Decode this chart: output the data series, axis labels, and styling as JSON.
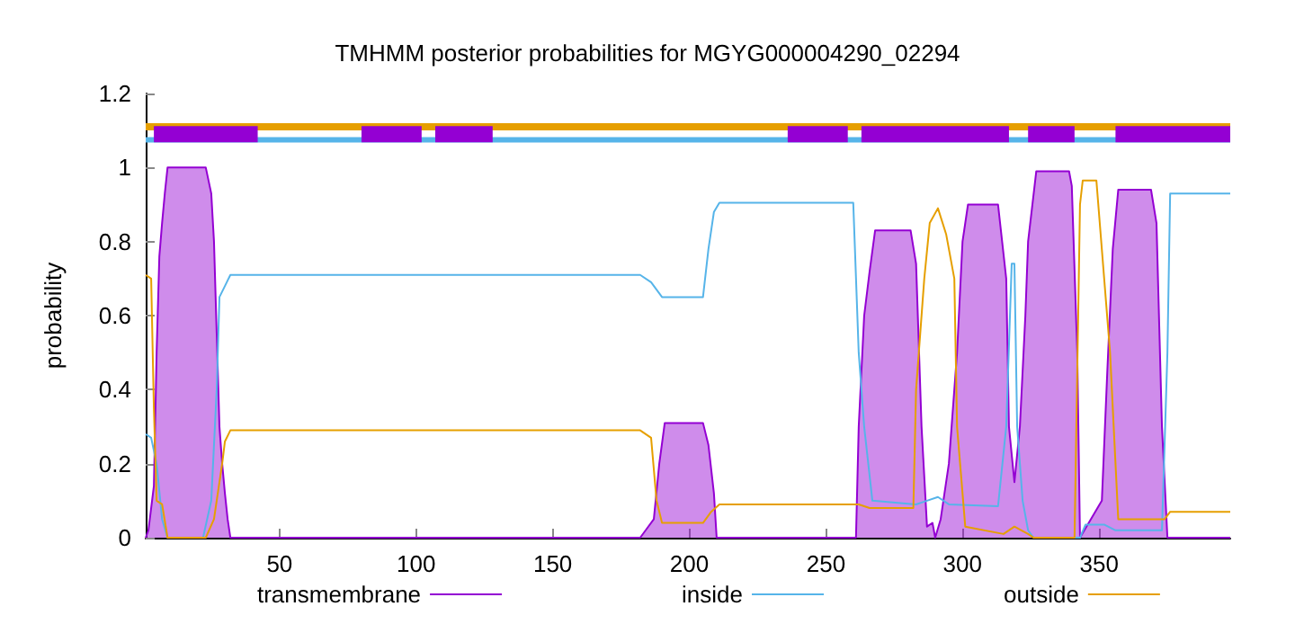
{
  "chart_data": {
    "type": "line",
    "title": "TMHMM posterior probabilities for MGYG000004290_02294",
    "ylabel": "probability",
    "xlim": [
      1,
      398
    ],
    "ylim": [
      0,
      1.2
    ],
    "xticks": [
      50,
      100,
      150,
      200,
      250,
      300,
      350
    ],
    "yticks": [
      0,
      0.2,
      0.4,
      0.6,
      0.8,
      1,
      1.2
    ],
    "legend": "bottom",
    "marker": "none",
    "series": [
      {
        "name": "transmembrane",
        "type": "area",
        "color": "#9400d3",
        "x": [
          1,
          2,
          4,
          5,
          6,
          7,
          8,
          9,
          23,
          25,
          26,
          27,
          28,
          29,
          30,
          31,
          32,
          182,
          184,
          187,
          189,
          191,
          205,
          207,
          209,
          210,
          261,
          262,
          264,
          266,
          268,
          281,
          283,
          285,
          287,
          289,
          290,
          292,
          295,
          298,
          300,
          302,
          313,
          316,
          317,
          319,
          321,
          323,
          324,
          327,
          339,
          340,
          342,
          343,
          351,
          353,
          355,
          357,
          369,
          371,
          373,
          375,
          398
        ],
        "values": [
          0,
          0.02,
          0.14,
          0.5,
          0.76,
          0.85,
          0.93,
          1,
          1,
          0.93,
          0.8,
          0.55,
          0.3,
          0.2,
          0.12,
          0.05,
          0,
          0,
          0.02,
          0.05,
          0.2,
          0.31,
          0.31,
          0.25,
          0.12,
          0,
          0,
          0.3,
          0.6,
          0.72,
          0.83,
          0.83,
          0.74,
          0.3,
          0.03,
          0.04,
          0,
          0.05,
          0.2,
          0.5,
          0.8,
          0.9,
          0.9,
          0.7,
          0.3,
          0.15,
          0.3,
          0.6,
          0.8,
          0.99,
          0.99,
          0.95,
          0.5,
          0,
          0.1,
          0.45,
          0.78,
          0.94,
          0.94,
          0.85,
          0.3,
          0,
          0
        ]
      },
      {
        "name": "inside",
        "color": "#56b4e9",
        "x": [
          1,
          3,
          5,
          7,
          9,
          22,
          25,
          27,
          28,
          30,
          32,
          182,
          186,
          190,
          205,
          207,
          209,
          211,
          260,
          262,
          264,
          267,
          283,
          287,
          291,
          295,
          313,
          316,
          318,
          319,
          320,
          322,
          324,
          326,
          343,
          345,
          352,
          356,
          373,
          375,
          376,
          398
        ],
        "values": [
          0.28,
          0.27,
          0.2,
          0.05,
          0,
          0,
          0.1,
          0.4,
          0.65,
          0.68,
          0.71,
          0.71,
          0.69,
          0.65,
          0.65,
          0.78,
          0.88,
          0.905,
          0.905,
          0.5,
          0.3,
          0.1,
          0.09,
          0.1,
          0.11,
          0.09,
          0.085,
          0.3,
          0.74,
          0.74,
          0.3,
          0.1,
          0.02,
          0,
          0,
          0.035,
          0.035,
          0.02,
          0.02,
          0.5,
          0.93,
          0.93
        ]
      },
      {
        "name": "outside",
        "color": "#e69f00",
        "x": [
          1,
          3,
          4,
          5,
          7,
          9,
          23,
          26,
          29,
          30,
          32,
          182,
          186,
          188,
          190,
          205,
          208,
          211,
          262,
          266,
          282,
          283,
          286,
          288,
          291,
          294,
          297,
          298,
          301,
          315,
          319,
          324,
          326,
          341,
          343,
          344,
          349,
          354,
          357,
          374,
          376,
          398
        ],
        "values": [
          0.71,
          0.7,
          0.35,
          0.1,
          0.09,
          0,
          0,
          0.05,
          0.2,
          0.26,
          0.29,
          0.29,
          0.27,
          0.1,
          0.04,
          0.04,
          0.07,
          0.09,
          0.09,
          0.08,
          0.08,
          0.4,
          0.7,
          0.85,
          0.89,
          0.82,
          0.7,
          0.3,
          0.03,
          0.01,
          0.03,
          0.01,
          0,
          0,
          0.9,
          0.965,
          0.965,
          0.5,
          0.05,
          0.05,
          0.07,
          0.07
        ]
      },
      {
        "color": "#e69f00",
        "x": [
          1,
          398
        ],
        "values": [
          1.11,
          1.11
        ]
      },
      {
        "color": "#56b4e9",
        "x": [
          1,
          398
        ],
        "values": [
          1.075,
          1.075
        ]
      },
      {
        "color": "#9400d3",
        "x": [
          4,
          42,
          43,
          80,
          102,
          103,
          107,
          128,
          129,
          236,
          258,
          259,
          263,
          317,
          318,
          324,
          341,
          342,
          356,
          398
        ],
        "values": [
          1.09,
          1.09,
          null,
          1.09,
          1.09,
          null,
          1.09,
          1.09,
          null,
          1.09,
          1.09,
          null,
          1.09,
          1.09,
          null,
          1.09,
          1.09,
          null,
          1.09,
          1.09
        ]
      }
    ]
  }
}
